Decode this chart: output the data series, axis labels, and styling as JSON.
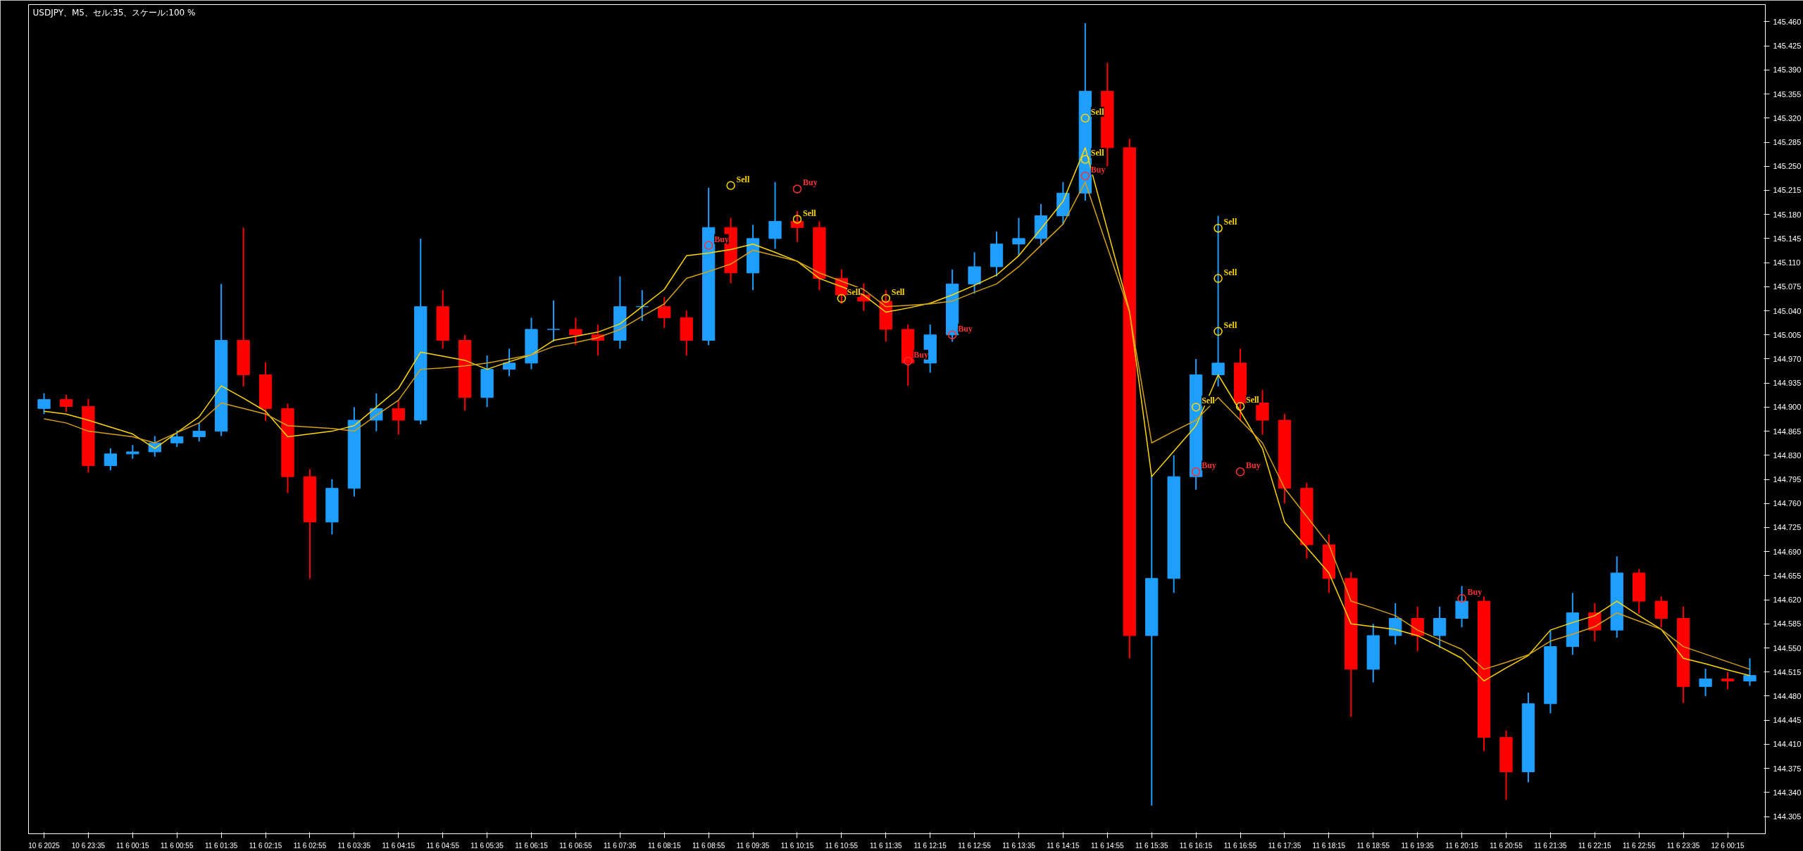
{
  "chart_data": {
    "type": "candlestick",
    "title": "USDJPY、M5、セル:35、スケール:100 %",
    "categories": [
      "10 6 2025",
      null,
      "10 6 23:35",
      null,
      "11 6 00:15",
      null,
      "11 6 00:55",
      null,
      "11 6 01:35",
      null,
      "11 6 02:15",
      null,
      "11 6 02:55",
      null,
      "11 6 03:35",
      null,
      "11 6 04:15",
      null,
      "11 6 04:55",
      null,
      "11 6 05:35",
      null,
      "11 6 06:15",
      null,
      "11 6 06:55",
      null,
      "11 6 07:35",
      null,
      "11 6 08:15",
      null,
      "11 6 08:55",
      null,
      "11 6 09:35",
      null,
      "11 6 10:15",
      null,
      "11 6 10:55",
      null,
      "11 6 11:35",
      null,
      "11 6 12:15",
      null,
      "11 6 12:55",
      null,
      "11 6 13:35",
      null,
      "11 6 14:15",
      null,
      "11 6 14:55",
      null,
      "11 6 15:35",
      null,
      "11 6 16:15",
      null,
      "11 6 16:55",
      null,
      "11 6 17:35",
      null,
      "11 6 18:15",
      null,
      "11 6 18:55",
      null,
      "11 6 19:35",
      null,
      "11 6 20:15",
      null,
      "11 6 20:55",
      null,
      "11 6 21:35",
      null,
      "11 6 22:15",
      null,
      "11 6 22:55",
      null,
      "11 6 23:35",
      null,
      "12 6 00:15",
      null
    ],
    "colors": [
      "#1e9fff",
      "#ff0000",
      "#ff0000",
      "#1e9fff",
      "#1e9fff",
      "#1e9fff",
      "#1e9fff",
      "#1e9fff",
      "#1e9fff",
      "#ff0000",
      "#ff0000",
      "#ff0000",
      "#ff0000",
      "#1e9fff",
      "#1e9fff",
      "#1e9fff",
      "#ff0000",
      "#1e9fff",
      "#ff0000",
      "#ff0000",
      "#1e9fff",
      "#1e9fff",
      "#1e9fff",
      "#1e9fff",
      "#ff0000",
      "#ff0000",
      "#1e9fff",
      "#1e9fff",
      "#ff0000",
      "#ff0000",
      "#1e9fff",
      "#ff0000",
      "#1e9fff",
      "#1e9fff",
      "#ff0000",
      "#ff0000",
      "#ff0000",
      "#ff0000",
      "#ff0000",
      "#ff0000",
      "#1e9fff",
      "#1e9fff",
      "#1e9fff",
      "#1e9fff",
      "#1e9fff",
      "#1e9fff",
      "#1e9fff",
      "#1e9fff",
      "#ff0000",
      "#ff0000",
      "#1e9fff",
      "#1e9fff",
      "#1e9fff",
      "#1e9fff",
      "#ff0000",
      "#ff0000",
      "#ff0000",
      "#ff0000",
      "#ff0000",
      "#ff0000",
      "#1e9fff",
      "#1e9fff",
      "#ff0000",
      "#1e9fff",
      "#1e9fff",
      "#ff0000",
      "#ff0000",
      "#1e9fff",
      "#1e9fff",
      "#1e9fff",
      "#ff0000",
      "#1e9fff",
      "#ff0000",
      "#ff0000",
      "#ff0000",
      "#1e9fff",
      "#ff0000",
      "#1e9fff"
    ],
    "ohlc": [
      [
        144.898,
        144.92,
        144.89,
        144.911
      ],
      [
        144.911,
        144.918,
        144.893,
        144.901
      ],
      [
        144.901,
        144.912,
        144.805,
        144.815
      ],
      [
        144.815,
        144.84,
        144.808,
        144.832
      ],
      [
        144.832,
        144.845,
        144.825,
        144.835
      ],
      [
        144.835,
        144.858,
        144.828,
        144.848
      ],
      [
        144.848,
        144.866,
        144.842,
        144.857
      ],
      [
        144.857,
        144.878,
        144.85,
        144.865
      ],
      [
        144.865,
        145.079,
        144.858,
        144.997
      ],
      [
        144.997,
        145.161,
        144.93,
        144.947
      ],
      [
        144.947,
        144.965,
        144.88,
        144.898
      ],
      [
        144.898,
        144.905,
        144.775,
        144.799
      ],
      [
        144.799,
        144.81,
        144.651,
        144.733
      ],
      [
        144.733,
        144.795,
        144.715,
        144.782
      ],
      [
        144.782,
        144.9,
        144.77,
        144.881
      ],
      [
        144.881,
        144.92,
        144.865,
        144.898
      ],
      [
        144.898,
        144.91,
        144.86,
        144.881
      ],
      [
        144.881,
        145.145,
        144.875,
        145.046
      ],
      [
        145.046,
        145.07,
        144.985,
        144.997
      ],
      [
        144.997,
        145.005,
        144.895,
        144.914
      ],
      [
        144.914,
        144.975,
        144.9,
        144.955
      ],
      [
        144.955,
        144.985,
        144.945,
        144.964
      ],
      [
        144.964,
        145.03,
        144.955,
        145.013
      ],
      [
        145.013,
        145.055,
        144.995,
        145.013
      ],
      [
        145.013,
        145.03,
        144.99,
        145.005
      ],
      [
        145.005,
        145.02,
        144.975,
        144.997
      ],
      [
        144.997,
        145.09,
        144.985,
        145.046
      ],
      [
        145.046,
        145.07,
        145.025,
        145.046
      ],
      [
        145.046,
        145.06,
        145.015,
        145.03
      ],
      [
        145.03,
        145.04,
        144.975,
        144.997
      ],
      [
        144.997,
        145.219,
        144.99,
        145.161
      ],
      [
        145.161,
        145.175,
        145.08,
        145.095
      ],
      [
        145.095,
        145.165,
        145.07,
        145.145
      ],
      [
        145.145,
        145.227,
        145.13,
        145.17
      ],
      [
        145.17,
        145.185,
        145.14,
        145.161
      ],
      [
        145.161,
        145.17,
        145.07,
        145.087
      ],
      [
        145.087,
        145.1,
        145.05,
        145.063
      ],
      [
        145.063,
        145.08,
        145.04,
        145.054
      ],
      [
        145.054,
        145.07,
        144.995,
        145.013
      ],
      [
        145.013,
        145.02,
        144.931,
        144.964
      ],
      [
        144.964,
        145.02,
        144.95,
        145.005
      ],
      [
        145.005,
        145.1,
        144.995,
        145.079
      ],
      [
        145.079,
        145.125,
        145.065,
        145.104
      ],
      [
        145.104,
        145.155,
        145.09,
        145.137
      ],
      [
        145.137,
        145.175,
        145.12,
        145.145
      ],
      [
        145.145,
        145.195,
        145.135,
        145.178
      ],
      [
        145.178,
        145.227,
        145.165,
        145.211
      ],
      [
        145.211,
        145.458,
        145.2,
        145.359
      ],
      [
        145.359,
        145.4,
        145.25,
        145.277
      ],
      [
        145.277,
        145.29,
        144.535,
        144.568
      ],
      [
        144.568,
        144.8,
        144.321,
        144.651
      ],
      [
        144.651,
        144.83,
        144.63,
        144.799
      ],
      [
        144.799,
        144.97,
        144.78,
        144.947
      ],
      [
        144.947,
        145.178,
        144.93,
        144.964
      ],
      [
        144.964,
        144.985,
        144.88,
        144.906
      ],
      [
        144.906,
        144.925,
        144.86,
        144.881
      ],
      [
        144.881,
        144.89,
        144.76,
        144.782
      ],
      [
        144.782,
        144.79,
        144.68,
        144.7
      ],
      [
        144.7,
        144.715,
        144.63,
        144.651
      ],
      [
        144.651,
        144.66,
        144.45,
        144.519
      ],
      [
        144.519,
        144.585,
        144.5,
        144.568
      ],
      [
        144.568,
        144.615,
        144.555,
        144.593
      ],
      [
        144.593,
        144.61,
        144.545,
        144.568
      ],
      [
        144.568,
        144.61,
        144.55,
        144.593
      ],
      [
        144.593,
        144.64,
        144.58,
        144.618
      ],
      [
        144.618,
        144.625,
        144.4,
        144.42
      ],
      [
        144.42,
        144.43,
        144.329,
        144.37
      ],
      [
        144.37,
        144.485,
        144.355,
        144.469
      ],
      [
        144.469,
        144.575,
        144.455,
        144.552
      ],
      [
        144.552,
        144.63,
        144.54,
        144.601
      ],
      [
        144.601,
        144.615,
        144.56,
        144.576
      ],
      [
        144.576,
        144.683,
        144.565,
        144.659
      ],
      [
        144.659,
        144.665,
        144.6,
        144.618
      ],
      [
        144.618,
        144.625,
        144.58,
        144.593
      ],
      [
        144.593,
        144.61,
        144.47,
        144.494
      ],
      [
        144.494,
        144.52,
        144.48,
        144.505
      ],
      [
        144.505,
        144.515,
        144.49,
        144.502
      ],
      [
        144.502,
        144.535,
        144.495,
        144.51
      ]
    ],
    "series": [
      {
        "type": "line",
        "color": "#ffd700",
        "values": [
          144.894,
          144.89,
          144.881,
          144.871,
          144.861,
          144.84,
          144.863,
          144.886,
          144.931,
          144.913,
          144.894,
          144.857,
          144.861,
          144.865,
          144.873,
          144.9,
          144.927,
          144.98,
          144.974,
          144.968,
          144.955,
          144.966,
          144.976,
          144.997,
          145.003,
          145.009,
          145.021,
          145.046,
          145.071,
          145.12,
          145.124,
          145.129,
          145.137,
          145.125,
          145.112,
          145.087,
          145.075,
          145.063,
          145.038,
          145.044,
          145.051,
          145.063,
          145.077,
          145.092,
          145.12,
          145.159,
          145.199,
          145.277,
          145.158,
          145.039,
          144.799,
          144.836,
          144.873,
          144.947,
          144.894,
          144.84,
          144.733,
          144.696,
          144.659,
          144.585,
          144.581,
          144.577,
          144.568,
          144.552,
          144.535,
          144.502,
          144.521,
          144.539,
          144.576,
          144.587,
          144.597,
          144.618,
          144.597,
          144.577,
          144.535,
          144.527,
          144.518,
          144.51
        ]
      },
      {
        "type": "line",
        "color": "#d4a017",
        "values": [
          144.883,
          144.877,
          144.865,
          144.861,
          144.857,
          144.848,
          144.863,
          144.877,
          144.906,
          144.898,
          144.89,
          144.873,
          144.871,
          144.869,
          144.865,
          144.888,
          144.91,
          144.955,
          144.957,
          144.96,
          144.964,
          144.97,
          144.976,
          144.988,
          144.994,
          145.001,
          145.013,
          145.032,
          145.05,
          145.087,
          145.097,
          145.108,
          145.128,
          145.12,
          145.112,
          145.095,
          145.083,
          145.071,
          145.046,
          145.048,
          145.05,
          145.054,
          145.067,
          145.079,
          145.104,
          145.135,
          145.166,
          145.227,
          145.132,
          145.038,
          144.848,
          144.865,
          144.881,
          144.914,
          144.881,
          144.848,
          144.782,
          144.741,
          144.7,
          144.618,
          144.608,
          144.597,
          144.576,
          144.562,
          144.548,
          144.519,
          144.529,
          144.54,
          144.56,
          144.57,
          144.581,
          144.601,
          144.589,
          144.577,
          144.552,
          144.541,
          144.53,
          144.519
        ]
      },
      {
        "type": "scatter",
        "marker": "circle",
        "color": "#ffd700",
        "values": [
          null,
          null,
          null,
          null,
          null,
          null,
          null,
          null,
          null,
          null,
          null,
          null,
          null,
          null,
          null,
          null,
          null,
          null,
          null,
          null,
          null,
          null,
          null,
          null,
          null,
          null,
          null,
          null,
          null,
          null,
          null,
          145.222,
          null,
          null,
          145.173,
          null,
          145.058,
          null,
          145.058,
          null,
          null,
          null,
          null,
          null,
          null,
          null,
          null,
          145.32,
          null,
          null,
          null,
          null,
          144.9,
          145.16,
          144.901,
          null,
          null,
          null,
          null,
          null,
          null,
          null,
          null,
          null,
          null,
          null,
          null,
          null,
          null,
          null,
          null,
          null,
          null,
          null,
          null,
          null,
          null,
          null
        ],
        "value_labels": [
          null,
          null,
          null,
          null,
          null,
          null,
          null,
          null,
          null,
          null,
          null,
          null,
          null,
          null,
          null,
          null,
          null,
          null,
          null,
          null,
          null,
          null,
          null,
          null,
          null,
          null,
          null,
          null,
          null,
          null,
          null,
          "Sell",
          null,
          null,
          "Sell",
          null,
          "Sell",
          null,
          "Sell",
          null,
          null,
          null,
          null,
          null,
          null,
          null,
          null,
          "Sell",
          null,
          null,
          null,
          null,
          "Sell",
          "Sell",
          "Sell",
          null,
          null,
          null,
          null,
          null,
          null,
          null,
          null,
          null,
          null,
          null,
          null,
          null,
          null,
          null,
          null,
          null,
          null,
          null,
          null,
          null,
          null,
          null
        ]
      },
      {
        "type": "scatter",
        "marker": "circle",
        "color": "#ffd700",
        "values": [
          null,
          null,
          null,
          null,
          null,
          null,
          null,
          null,
          null,
          null,
          null,
          null,
          null,
          null,
          null,
          null,
          null,
          null,
          null,
          null,
          null,
          null,
          null,
          null,
          null,
          null,
          null,
          null,
          null,
          null,
          null,
          null,
          null,
          null,
          null,
          null,
          null,
          null,
          null,
          null,
          null,
          null,
          null,
          null,
          null,
          null,
          null,
          145.26,
          null,
          null,
          null,
          null,
          null,
          145.087,
          null,
          null,
          null,
          null,
          null,
          null,
          null,
          null,
          null,
          null,
          null,
          null,
          null,
          null,
          null,
          null,
          null,
          null,
          null,
          null,
          null,
          null,
          null,
          null
        ],
        "value_labels": [
          null,
          null,
          null,
          null,
          null,
          null,
          null,
          null,
          null,
          null,
          null,
          null,
          null,
          null,
          null,
          null,
          null,
          null,
          null,
          null,
          null,
          null,
          null,
          null,
          null,
          null,
          null,
          null,
          null,
          null,
          null,
          null,
          null,
          null,
          null,
          null,
          null,
          null,
          null,
          null,
          null,
          null,
          null,
          null,
          null,
          null,
          null,
          "Sell",
          null,
          null,
          null,
          null,
          null,
          "Sell",
          null,
          null,
          null,
          null,
          null,
          null,
          null,
          null,
          null,
          null,
          null,
          null,
          null,
          null,
          null,
          null,
          null,
          null,
          null,
          null,
          null,
          null,
          null,
          null
        ]
      },
      {
        "type": "scatter",
        "marker": "circle",
        "color": "#ffd700",
        "values": [
          null,
          null,
          null,
          null,
          null,
          null,
          null,
          null,
          null,
          null,
          null,
          null,
          null,
          null,
          null,
          null,
          null,
          null,
          null,
          null,
          null,
          null,
          null,
          null,
          null,
          null,
          null,
          null,
          null,
          null,
          null,
          null,
          null,
          null,
          null,
          null,
          null,
          null,
          null,
          null,
          null,
          null,
          null,
          null,
          null,
          null,
          null,
          null,
          null,
          null,
          null,
          null,
          null,
          145.01,
          null,
          null,
          null,
          null,
          null,
          null,
          null,
          null,
          null,
          null,
          null,
          null,
          null,
          null,
          null,
          null,
          null,
          null,
          null,
          null,
          null,
          null,
          null,
          null
        ],
        "value_labels": [
          null,
          null,
          null,
          null,
          null,
          null,
          null,
          null,
          null,
          null,
          null,
          null,
          null,
          null,
          null,
          null,
          null,
          null,
          null,
          null,
          null,
          null,
          null,
          null,
          null,
          null,
          null,
          null,
          null,
          null,
          null,
          null,
          null,
          null,
          null,
          null,
          null,
          null,
          null,
          null,
          null,
          null,
          null,
          null,
          null,
          null,
          null,
          null,
          null,
          null,
          null,
          null,
          null,
          "Sell",
          null,
          null,
          null,
          null,
          null,
          null,
          null,
          null,
          null,
          null,
          null,
          null,
          null,
          null,
          null,
          null,
          null,
          null,
          null,
          null,
          null,
          null,
          null,
          null
        ]
      },
      {
        "type": "scatter",
        "marker": "circle",
        "color": "#ff3030",
        "values": [
          null,
          null,
          null,
          null,
          null,
          null,
          null,
          null,
          null,
          null,
          null,
          null,
          null,
          null,
          null,
          null,
          null,
          null,
          null,
          null,
          null,
          null,
          null,
          null,
          null,
          null,
          null,
          null,
          null,
          null,
          145.135,
          null,
          null,
          null,
          145.217,
          null,
          null,
          null,
          null,
          144.967,
          null,
          145.005,
          null,
          null,
          null,
          null,
          null,
          145.236,
          null,
          null,
          null,
          null,
          144.806,
          null,
          144.806,
          null,
          null,
          null,
          null,
          null,
          null,
          null,
          null,
          null,
          144.622,
          null,
          null,
          null,
          null,
          null,
          null,
          null,
          null,
          null,
          null,
          null,
          null,
          null
        ],
        "value_labels": [
          null,
          null,
          null,
          null,
          null,
          null,
          null,
          null,
          null,
          null,
          null,
          null,
          null,
          null,
          null,
          null,
          null,
          null,
          null,
          null,
          null,
          null,
          null,
          null,
          null,
          null,
          null,
          null,
          null,
          null,
          "Buy",
          null,
          null,
          null,
          "Buy",
          null,
          null,
          null,
          null,
          "Buy",
          null,
          "Buy",
          null,
          null,
          null,
          null,
          null,
          "Buy",
          null,
          null,
          null,
          null,
          "Buy",
          null,
          "Buy",
          null,
          null,
          null,
          null,
          null,
          null,
          null,
          null,
          null,
          "Buy",
          null,
          null,
          null,
          null,
          null,
          null,
          null,
          null,
          null,
          null,
          null,
          null,
          null
        ]
      }
    ],
    "ylim": [
      144.28,
      145.485
    ],
    "yticks": [
      {
        "value": 145.46,
        "label": "145.460"
      },
      145.425,
      {
        "value": 145.39,
        "label": "145.390"
      },
      145.355,
      {
        "value": 145.32,
        "label": "145.320"
      },
      145.285,
      {
        "value": 145.25,
        "label": "145.250"
      },
      145.215,
      {
        "value": 145.18,
        "label": "145.180"
      },
      145.145,
      {
        "value": 145.11,
        "label": "145.110"
      },
      145.075,
      {
        "value": 145.04,
        "label": "145.040"
      },
      145.005,
      {
        "value": 144.97,
        "label": "144.970"
      },
      144.935,
      {
        "value": 144.9,
        "label": "144.900"
      },
      144.865,
      {
        "value": 144.83,
        "label": "144.830"
      },
      144.795,
      {
        "value": 144.76,
        "label": "144.760"
      },
      144.725,
      {
        "value": 144.69,
        "label": "144.690"
      },
      144.655,
      {
        "value": 144.62,
        "label": "144.620"
      },
      144.585,
      {
        "value": 144.55,
        "label": "144.550"
      },
      144.515,
      {
        "value": 144.48,
        "label": "144.480"
      },
      144.445,
      {
        "value": 144.41,
        "label": "144.410"
      },
      144.375,
      {
        "value": 144.34,
        "label": "144.340"
      },
      144.305
    ]
  }
}
